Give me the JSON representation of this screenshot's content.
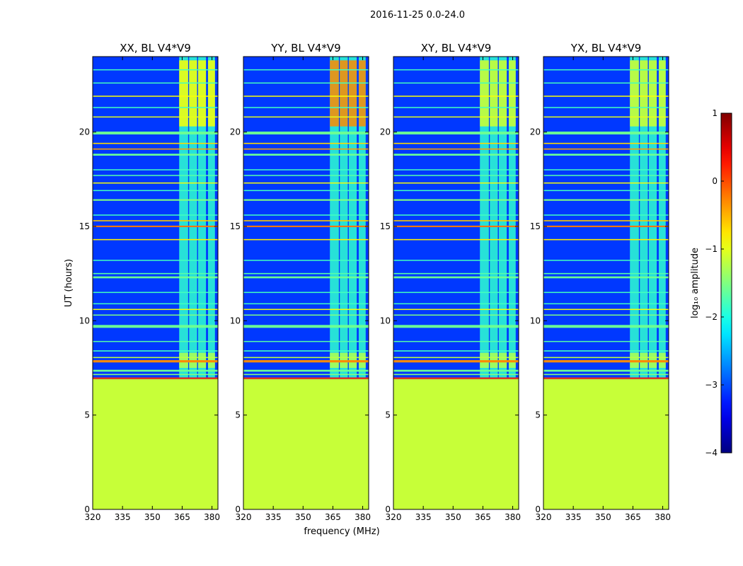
{
  "figure": {
    "suptitle": "2016-11-25 0.0-24.0"
  },
  "chart_data": {
    "type": "heatmap",
    "x_range": [
      320,
      383
    ],
    "y_range": [
      0,
      24
    ],
    "xlabel": "frequency (MHz)",
    "ylabel": "UT (hours)",
    "x_ticks": [
      320,
      335,
      350,
      365,
      380
    ],
    "y_ticks": [
      0,
      5,
      10,
      15,
      20
    ],
    "colormap": "jet",
    "colorbar": {
      "label": "log₁₀ amplitude",
      "range": [
        -4,
        1
      ],
      "ticks": [
        1,
        0,
        -1,
        -2,
        -3,
        -4
      ]
    },
    "panels": [
      {
        "title": "XX, BL V4*V9",
        "pol": "XX",
        "block_level": -0.9
      },
      {
        "title": "YY, BL V4*V9",
        "pol": "YY",
        "block_level": -0.3
      },
      {
        "title": "XY, BL V4*V9",
        "pol": "XY",
        "block_level": -1.1
      },
      {
        "title": "YX, BL V4*V9",
        "pol": "YX",
        "block_level": -1.1
      }
    ],
    "fill_region": {
      "t_from": 0,
      "t_to": 6.9,
      "level": -1.15
    },
    "background_level": -3.1,
    "rfi_bands": [
      {
        "f_from": 363.5,
        "f_to": 368,
        "t_from": 7.0,
        "t_to": 24.0,
        "level": -1.9
      },
      {
        "f_from": 368.5,
        "f_to": 372.5,
        "t_from": 7.0,
        "t_to": 24.0,
        "level": -1.9
      },
      {
        "f_from": 373,
        "f_to": 377,
        "t_from": 7.0,
        "t_to": 24.0,
        "level": -1.9
      },
      {
        "f_from": 378,
        "f_to": 381.5,
        "t_from": 7.0,
        "t_to": 24.0,
        "level": -1.9
      }
    ],
    "rfi_times": [
      {
        "t": 6.95,
        "w": 0.08,
        "level": 0.1
      },
      {
        "t": 7.15,
        "w": 0.06,
        "level": -1.5
      },
      {
        "t": 7.35,
        "w": 0.1,
        "level": -1.6
      },
      {
        "t": 7.85,
        "w": 0.12,
        "level": -0.3
      },
      {
        "t": 8.05,
        "w": 0.05,
        "level": -1.2
      },
      {
        "t": 8.4,
        "w": 0.06,
        "level": -1.8
      },
      {
        "t": 8.9,
        "w": 0.05,
        "level": -1.7
      },
      {
        "t": 9.7,
        "w": 0.15,
        "level": -1.6
      },
      {
        "t": 10.3,
        "w": 0.04,
        "level": -1.5
      },
      {
        "t": 10.6,
        "w": 0.05,
        "level": -0.9
      },
      {
        "t": 10.9,
        "w": 0.05,
        "level": -1.8
      },
      {
        "t": 11.5,
        "w": 0.04,
        "level": -1.8
      },
      {
        "t": 12.3,
        "w": 0.1,
        "level": -1.6
      },
      {
        "t": 12.5,
        "w": 0.06,
        "level": -1.7
      },
      {
        "t": 13.2,
        "w": 0.04,
        "level": -1.8
      },
      {
        "t": 14.3,
        "w": 0.06,
        "level": -0.8
      },
      {
        "t": 15.0,
        "w": 0.08,
        "level": -0.2
      },
      {
        "t": 15.3,
        "w": 0.06,
        "level": -0.6
      },
      {
        "t": 15.6,
        "w": 0.05,
        "level": -1.8
      },
      {
        "t": 16.4,
        "w": 0.08,
        "level": -1.5
      },
      {
        "t": 16.9,
        "w": 0.05,
        "level": -1.8
      },
      {
        "t": 17.3,
        "w": 0.05,
        "level": -0.9
      },
      {
        "t": 17.7,
        "w": 0.05,
        "level": -1.7
      },
      {
        "t": 18.0,
        "w": 0.05,
        "level": -1.8
      },
      {
        "t": 18.8,
        "w": 0.1,
        "level": -1.6
      },
      {
        "t": 19.1,
        "w": 0.06,
        "level": -0.4
      },
      {
        "t": 19.4,
        "w": 0.06,
        "level": -0.7
      },
      {
        "t": 19.95,
        "w": 0.15,
        "level": -1.6
      },
      {
        "t": 20.8,
        "w": 0.05,
        "level": -1.0
      },
      {
        "t": 21.3,
        "w": 0.04,
        "level": -1.8
      },
      {
        "t": 21.9,
        "w": 0.05,
        "level": -0.9
      },
      {
        "t": 22.6,
        "w": 0.04,
        "level": -1.8
      },
      {
        "t": 23.3,
        "w": 0.04,
        "level": -1.8
      }
    ]
  }
}
